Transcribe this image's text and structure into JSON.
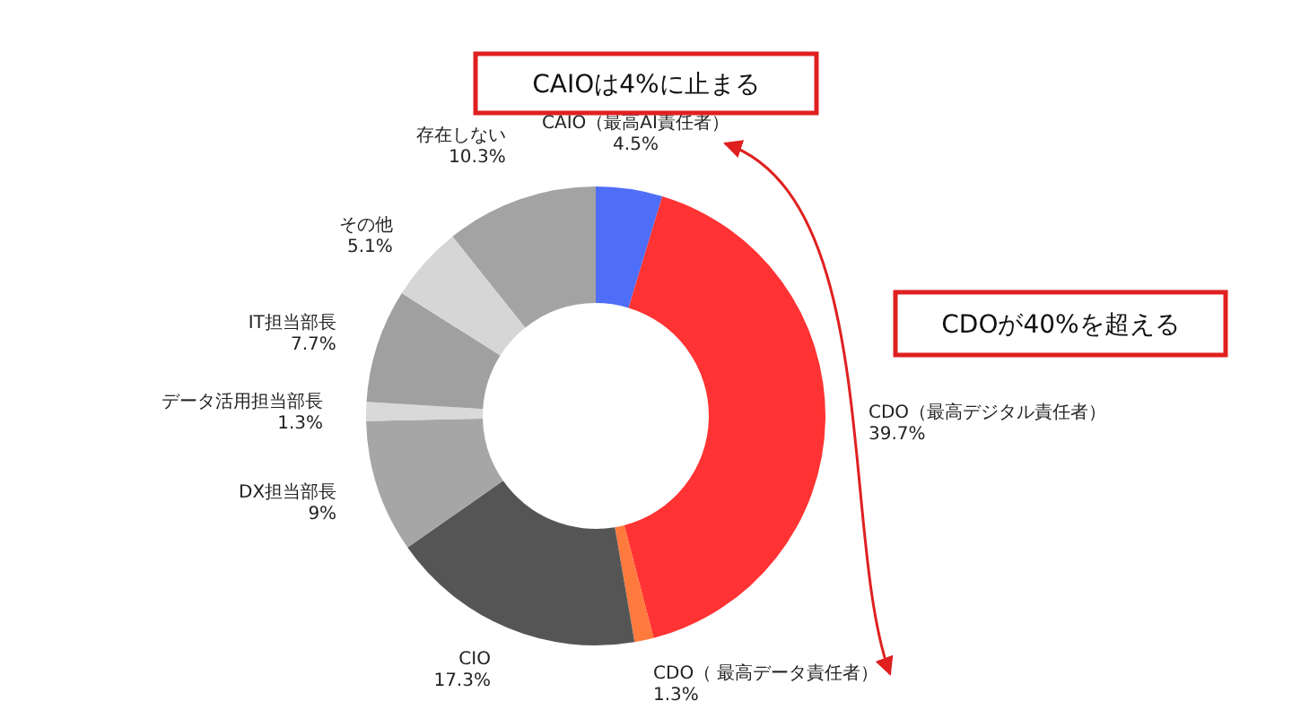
{
  "chart_data": {
    "type": "donut",
    "categories": [
      "CAIO（最高AI責任者）",
      "CDO（最高デジタル責任者）",
      "CDO（ 最高データ責任者）",
      "CIO",
      "DX担当部長",
      "データ活用担当部長",
      "IT担当部長",
      "その他",
      "存在しない"
    ],
    "values": [
      4.5,
      39.7,
      1.3,
      17.3,
      9,
      1.3,
      7.7,
      5.1,
      10.3
    ],
    "colors": [
      "#4f6ef7",
      "#ff3333",
      "#ff7a3d",
      "#555555",
      "#a6a6a6",
      "#d9d9d9",
      "#a0a0a0",
      "#d6d6d6",
      "#a3a3a3"
    ],
    "value_labels": [
      "4.5%",
      "39.7%",
      "1.3%",
      "17.3%",
      "9%",
      "1.3%",
      "7.7%",
      "5.1%",
      "10.3%"
    ],
    "annotations": [
      "CAIOは4%に止まる",
      "CDOが40%を超える"
    ]
  }
}
